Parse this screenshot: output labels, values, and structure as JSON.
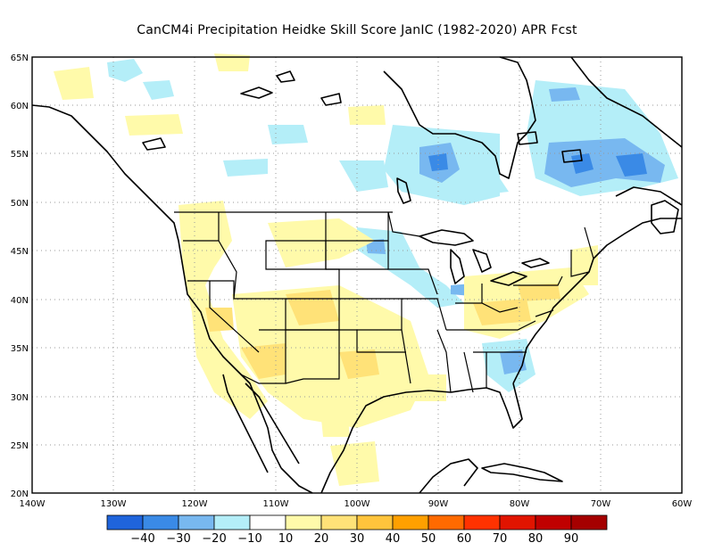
{
  "title": "CanCM4i  Precipitation Heidke Skill Score JanIC (1982-2020) APR Fcst",
  "lat_labels": [
    "65N",
    "60N",
    "55N",
    "50N",
    "45N",
    "40N",
    "35N",
    "30N",
    "25N",
    "20N"
  ],
  "lon_labels": [
    "140W",
    "130W",
    "120W",
    "110W",
    "100W",
    "90W",
    "80W",
    "70W",
    "60W"
  ],
  "colorbar": {
    "colors": [
      "#1f64dc",
      "#3a8ae6",
      "#78b8f0",
      "#b4eef8",
      "#ffffff",
      "#fffaaa",
      "#ffe278",
      "#ffc43c",
      "#ffa000",
      "#ff6a00",
      "#ff3200",
      "#e11400",
      "#c00000",
      "#a50000"
    ],
    "labels": [
      "−40",
      "−30",
      "−20",
      "−10",
      "10",
      "20",
      "30",
      "40",
      "50",
      "60",
      "70",
      "80",
      "90"
    ]
  }
}
